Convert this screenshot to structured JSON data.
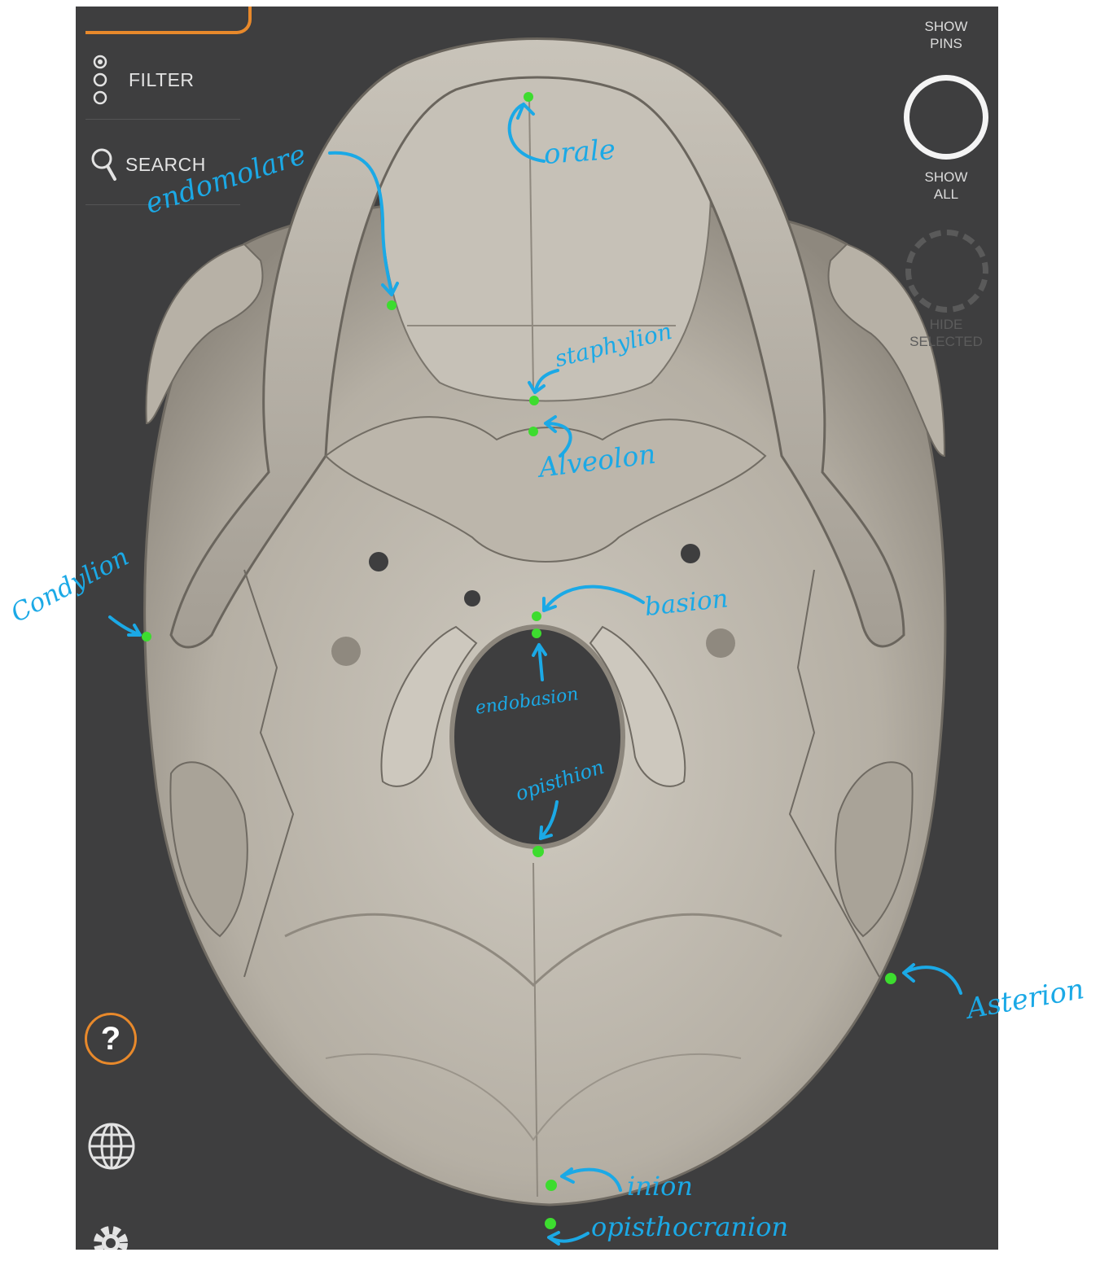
{
  "sidebar": {
    "filter_label": "FILTER",
    "search_label": "SEARCH",
    "help_label": "?"
  },
  "controls": {
    "show_pins_line1": "SHOW",
    "show_pins_line2": "PINS",
    "show_all_line1": "SHOW",
    "show_all_line2": "ALL",
    "hide_selected_line1": "HIDE",
    "hide_selected_line2": "SELECTED"
  },
  "annotations": {
    "orale": "orale",
    "endomolare": "endomolare",
    "staphylion": "staphylion",
    "alveolon": "Alveolon",
    "condylion": "Condylion",
    "basion": "basion",
    "endobasion": "endobasion",
    "opisthion": "opisthion",
    "asterion": "Asterion",
    "inion": "inion",
    "opisthocranion": "opisthocranion"
  },
  "colors": {
    "accent": "#e8892b",
    "annotation": "#1ba9e6",
    "pin": "#3ddc2f",
    "background": "#3e3e3f",
    "bone": "#b9b4aa"
  }
}
